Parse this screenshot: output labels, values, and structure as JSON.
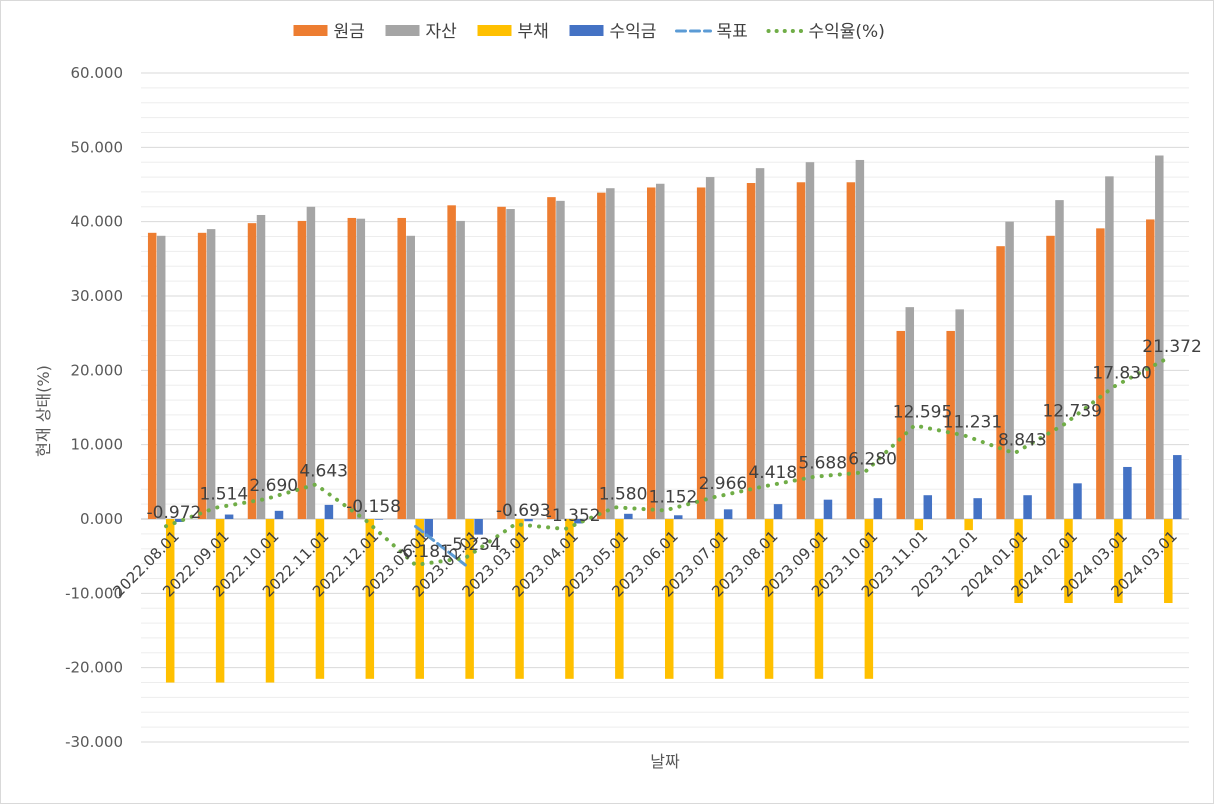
{
  "chart_data": {
    "type": "bar",
    "title": "",
    "xlabel": "날짜",
    "ylabel": "현재 상태(%)",
    "ylim": [
      -30,
      60
    ],
    "ytick_step": 10,
    "grid": true,
    "legend_position": "top",
    "categories": [
      "2022.08.01",
      "2022.09.01",
      "2022.10.01",
      "2022.11.01",
      "2022.12.01",
      "2023.01.01",
      "2023.02.01",
      "2023.03.01",
      "2023.04.01",
      "2023.05.01",
      "2023.06.01",
      "2023.07.01",
      "2023.08.01",
      "2023.09.01",
      "2023.10.01",
      "2023.11.01",
      "2023.12.01",
      "2024.01.01",
      "2024.02.01",
      "2024.03.01",
      "2024.03.01"
    ],
    "y_tick_labels": [
      "-30.000",
      "-20.000",
      "-10.000",
      "0.000",
      "10.000",
      "20.000",
      "30.000",
      "40.000",
      "50.000",
      "60.000"
    ],
    "series": [
      {
        "name": "원금",
        "kind": "bar",
        "color": "#ED7D31",
        "values": [
          38.5,
          38.5,
          39.8,
          40.1,
          40.5,
          40.5,
          42.2,
          42.0,
          43.3,
          43.9,
          44.6,
          44.6,
          45.2,
          45.3,
          45.3,
          25.3,
          25.3,
          36.7,
          38.1,
          39.1,
          40.3
        ]
      },
      {
        "name": "자산",
        "kind": "bar",
        "color": "#A5A5A5",
        "values": [
          38.1,
          39.0,
          40.9,
          42.0,
          40.4,
          38.1,
          40.1,
          41.7,
          42.8,
          44.5,
          45.1,
          46.0,
          47.2,
          48.0,
          48.3,
          28.5,
          28.2,
          40.0,
          42.9,
          46.1,
          48.9
        ]
      },
      {
        "name": "부채",
        "kind": "bar",
        "color": "#FFC000",
        "values": [
          -22.0,
          -22.0,
          -22.0,
          -21.5,
          -21.5,
          -21.5,
          -21.5,
          -21.5,
          -21.5,
          -21.5,
          -21.5,
          -21.5,
          -21.5,
          -21.5,
          -21.5,
          -1.5,
          -1.5,
          -11.3,
          -11.3,
          -11.3,
          -11.3
        ]
      },
      {
        "name": "수익금",
        "kind": "bar",
        "color": "#4472C4",
        "values": [
          -0.4,
          0.6,
          1.1,
          1.9,
          -0.1,
          -2.4,
          -2.1,
          -0.3,
          -0.6,
          0.7,
          0.5,
          1.3,
          2.0,
          2.6,
          2.8,
          3.2,
          2.8,
          3.2,
          4.8,
          7.0,
          8.6
        ]
      },
      {
        "name": "목표",
        "kind": "line",
        "style": "dashed",
        "color": "#5B9BD5",
        "values": [
          null,
          null,
          null,
          null,
          null,
          -1.0,
          -6.2,
          null,
          null,
          null,
          null,
          null,
          null,
          null,
          null,
          null,
          null,
          null,
          null,
          null,
          null
        ]
      },
      {
        "name": "수익율(%)",
        "kind": "line",
        "style": "dotted",
        "color": "#70AD47",
        "values": [
          -0.972,
          1.514,
          2.69,
          4.643,
          -0.158,
          -6.181,
          -5.234,
          -0.693,
          -1.352,
          1.58,
          1.152,
          2.966,
          4.418,
          5.688,
          6.28,
          12.595,
          11.231,
          8.843,
          12.739,
          17.83,
          21.372
        ],
        "labels": [
          "-0.972",
          "1.514",
          "2.690",
          "4.643",
          "-0.158",
          "-6.181",
          "-5.234",
          "-0.693",
          "-1.352",
          "1.580",
          "1.152",
          "2.966",
          "4.418",
          "5.688",
          "6.280",
          "12.595",
          "11.231",
          "8.843",
          "12.739",
          "17.830",
          "21.372"
        ]
      }
    ]
  }
}
